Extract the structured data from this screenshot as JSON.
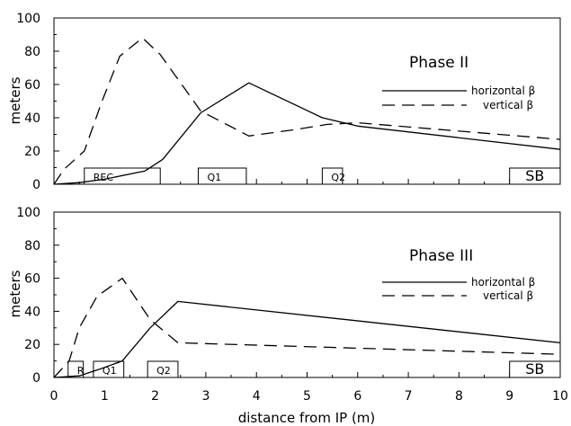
{
  "xlabel": "distance from IP (m)",
  "x_ticks": [
    "0",
    "1",
    "2",
    "3",
    "4",
    "5",
    "6",
    "7",
    "8",
    "9",
    "10"
  ],
  "y_ticks": [
    "0",
    "20",
    "40",
    "60",
    "80",
    "100"
  ],
  "chart_data": [
    {
      "type": "line",
      "title": "Phase II",
      "xlabel": "",
      "ylabel": "meters",
      "xlim": [
        0,
        10
      ],
      "ylim": [
        0,
        100
      ],
      "grid": false,
      "legend_position": "right",
      "series": [
        {
          "name": "horizontal β",
          "style": "solid",
          "x": [
            0,
            0.5,
            1,
            1.8,
            2.15,
            2.9,
            3.85,
            5.3,
            6,
            10
          ],
          "y": [
            0,
            1,
            3,
            8,
            15,
            43,
            61,
            40,
            35,
            21
          ]
        },
        {
          "name": "vertical β",
          "style": "dashed",
          "x": [
            0,
            0.2,
            0.6,
            0.95,
            1.3,
            1.75,
            2.1,
            2.9,
            3.85,
            4.8,
            5.4,
            6,
            10
          ],
          "y": [
            0,
            9,
            20,
            50,
            77,
            88,
            78,
            44,
            29,
            33,
            36,
            37,
            27
          ]
        }
      ],
      "elements": [
        {
          "label": "REC",
          "start": 0.6,
          "end": 2.1
        },
        {
          "label": "Q1",
          "start": 2.85,
          "end": 3.8
        },
        {
          "label": "Q2",
          "start": 5.3,
          "end": 5.7
        },
        {
          "label": "SB",
          "start": 9.0,
          "end": 10.0
        }
      ]
    },
    {
      "type": "line",
      "title": "Phase III",
      "xlabel": "distance from IP (m)",
      "ylabel": "meters",
      "xlim": [
        0,
        10
      ],
      "ylim": [
        0,
        100
      ],
      "grid": false,
      "legend_position": "right",
      "series": [
        {
          "name": "horizontal β",
          "style": "solid",
          "x": [
            0,
            0.5,
            0.9,
            1.35,
            1.9,
            2.45,
            10
          ],
          "y": [
            0,
            1,
            5,
            10,
            30,
            46,
            21
          ]
        },
        {
          "name": "vertical β",
          "style": "dashed",
          "x": [
            0,
            0.3,
            0.5,
            0.85,
            1.35,
            1.9,
            2.45,
            10
          ],
          "y": [
            0,
            10,
            30,
            49,
            60,
            35,
            21,
            14
          ]
        }
      ],
      "elements": [
        {
          "label": "R",
          "start": 0.28,
          "end": 0.58
        },
        {
          "label": "Q1",
          "start": 0.78,
          "end": 1.38
        },
        {
          "label": "Q2",
          "start": 1.85,
          "end": 2.45
        },
        {
          "label": "SB",
          "start": 9.0,
          "end": 10.0
        }
      ]
    }
  ]
}
